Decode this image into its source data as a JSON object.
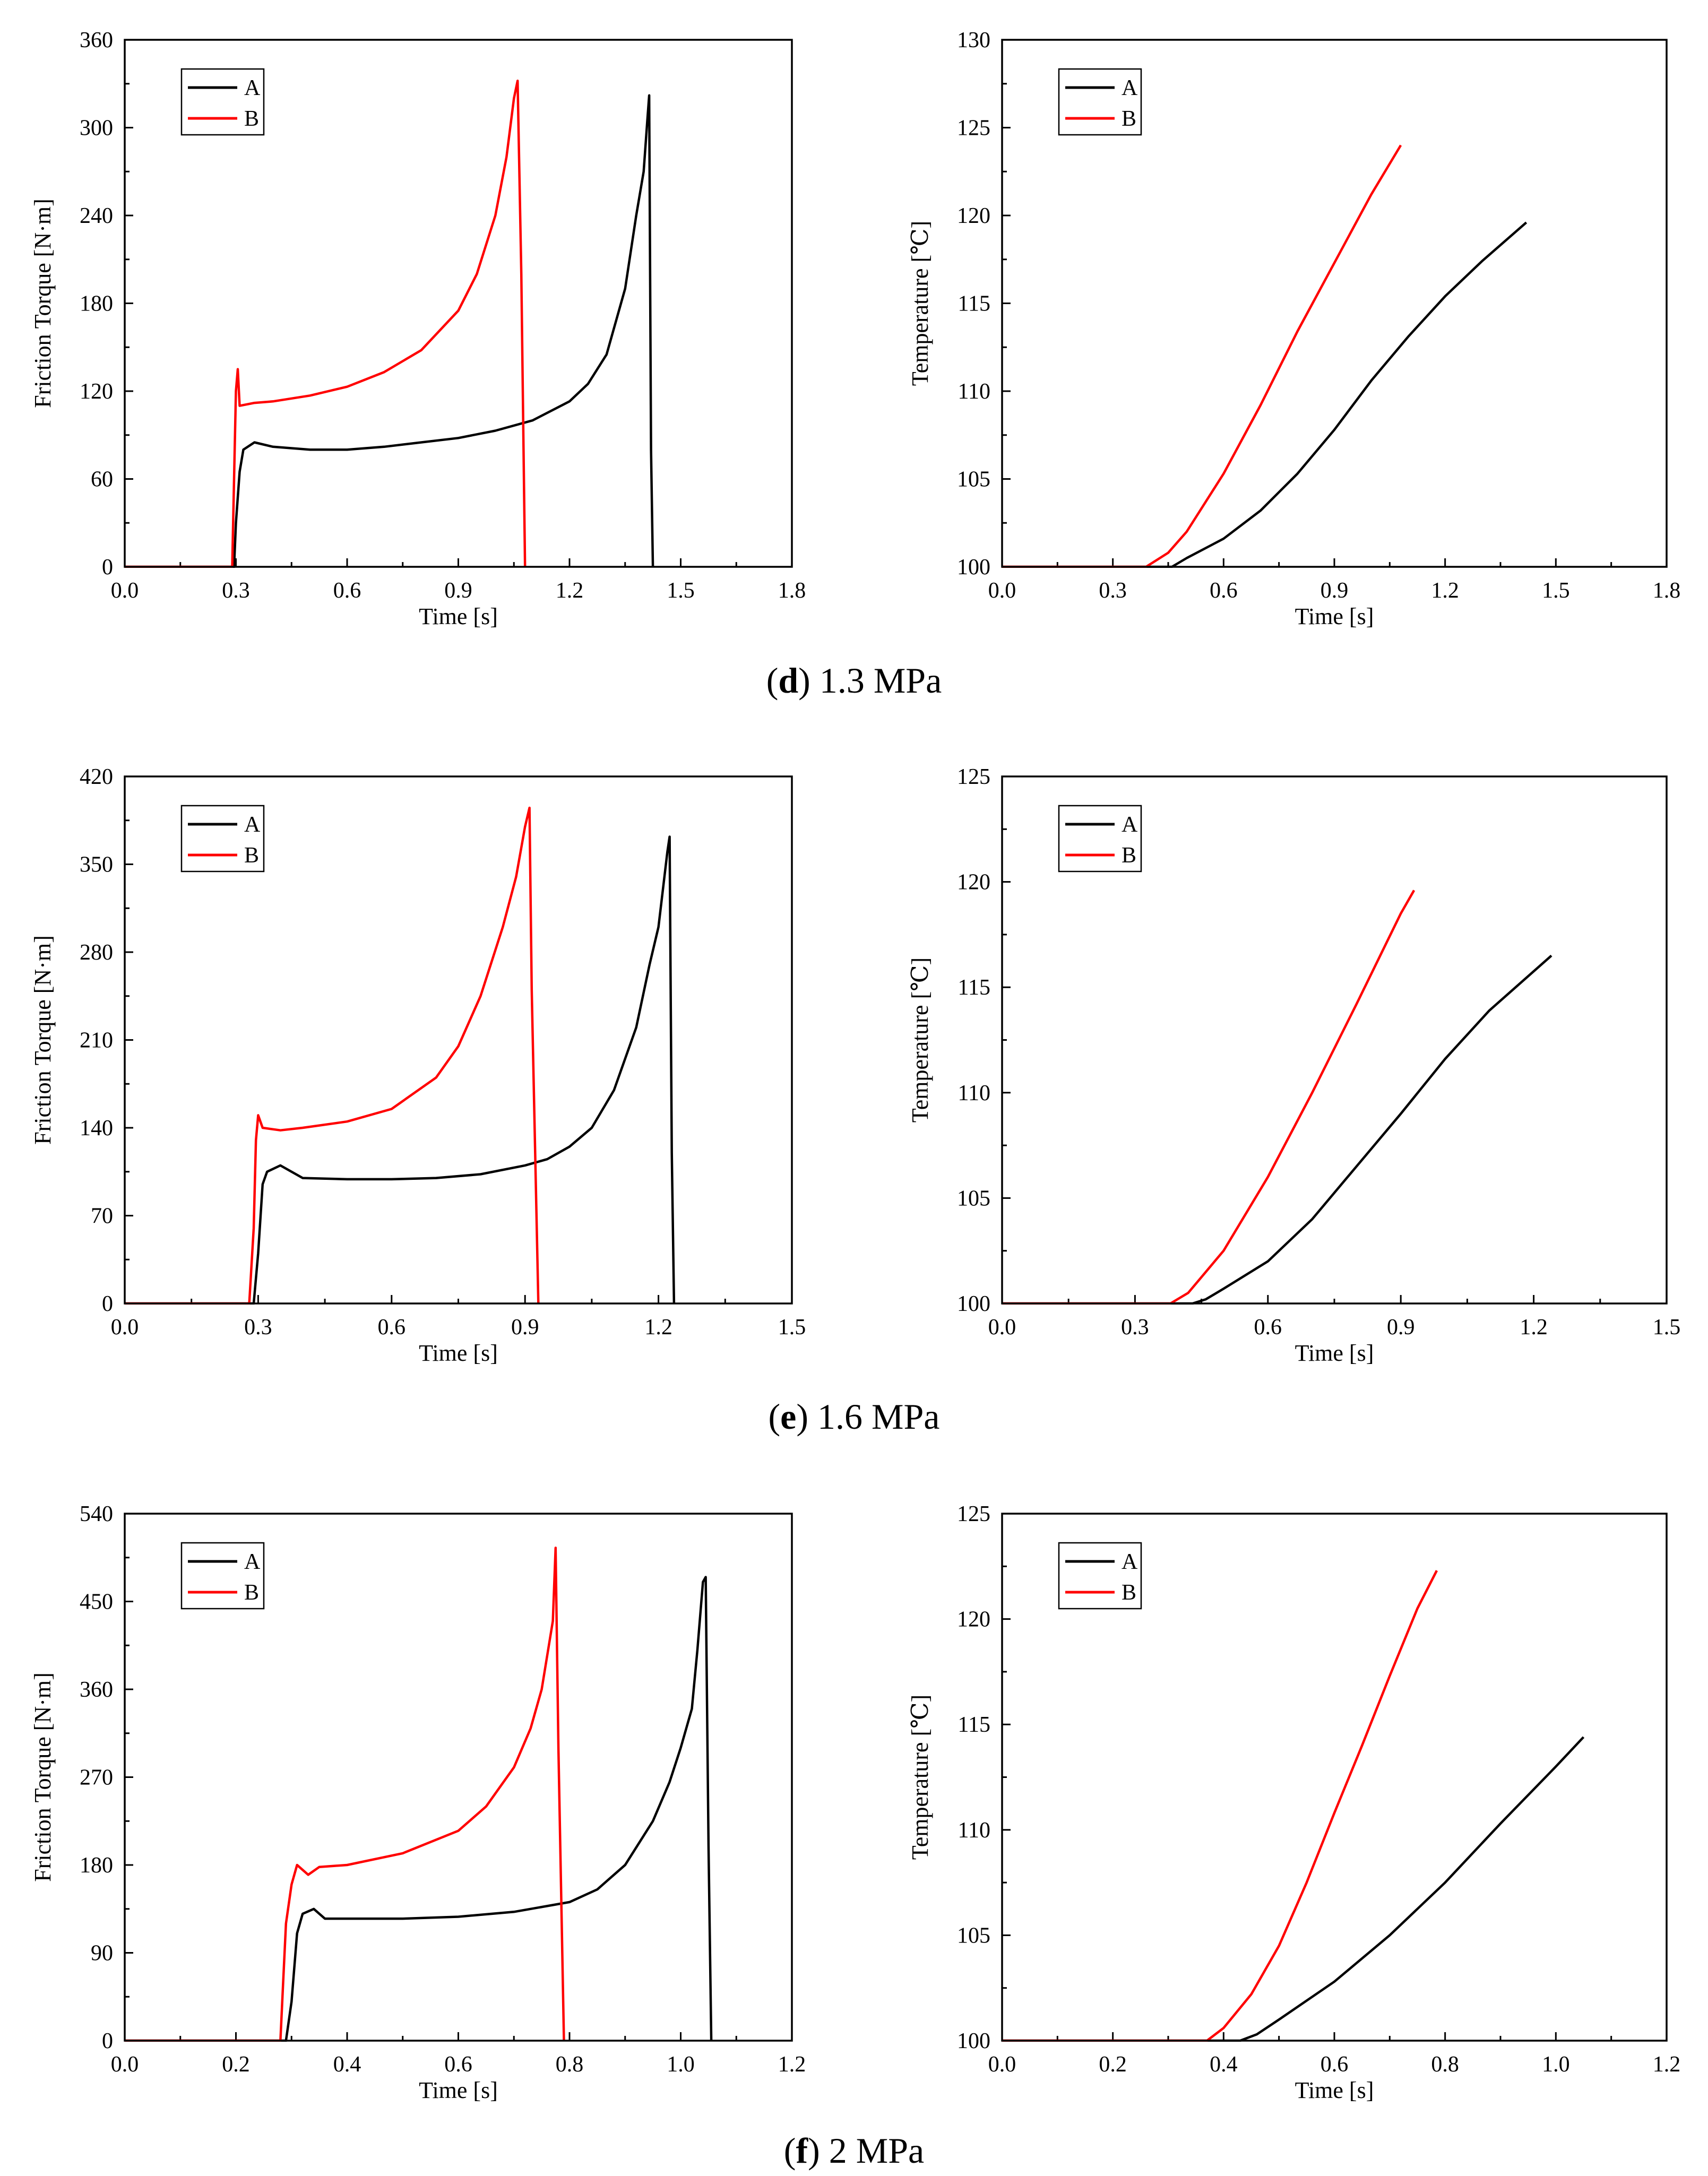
{
  "rows": [
    {
      "caption": {
        "letter": "d",
        "text": " 1.3 MPa"
      },
      "torque": {
        "type": "line",
        "xlabel": "Time [s]",
        "ylabel": "Friction Torque [N·m]",
        "xlim": [
          0,
          1.8
        ],
        "ylim": [
          0,
          360
        ],
        "xticks": [
          "0.0",
          "0.3",
          "0.6",
          "0.9",
          "1.2",
          "1.5",
          "1.8"
        ],
        "yticks": [
          "0",
          "60",
          "120",
          "180",
          "240",
          "300",
          "360"
        ],
        "legend": {
          "position": "top-left"
        },
        "series": [
          {
            "name": "A",
            "color": "#000000",
            "x": [
              0,
              0.29,
              0.295,
              0.3,
              0.31,
              0.32,
              0.35,
              0.4,
              0.5,
              0.6,
              0.7,
              0.8,
              0.9,
              1.0,
              1.1,
              1.2,
              1.25,
              1.3,
              1.35,
              1.38,
              1.4,
              1.41,
              1.415,
              1.42,
              1.425
            ],
            "y": [
              0,
              0,
              0,
              30,
              65,
              80,
              85,
              82,
              80,
              80,
              82,
              85,
              88,
              93,
              100,
              113,
              125,
              145,
              190,
              240,
              270,
              305,
              322,
              80,
              0
            ]
          },
          {
            "name": "B",
            "color": "#ff0000",
            "x": [
              0,
              0.28,
              0.29,
              0.295,
              0.3,
              0.305,
              0.31,
              0.35,
              0.4,
              0.5,
              0.6,
              0.7,
              0.8,
              0.9,
              0.95,
              1.0,
              1.03,
              1.05,
              1.06,
              1.07,
              1.08
            ],
            "y": [
              0,
              0,
              0,
              60,
              120,
              135,
              110,
              112,
              113,
              117,
              123,
              133,
              148,
              175,
              200,
              240,
              280,
              320,
              332,
              200,
              0
            ]
          }
        ]
      },
      "temp": {
        "type": "line",
        "xlabel": "Time [s]",
        "ylabel": "Temperature [℃]",
        "xlim": [
          0,
          1.8
        ],
        "ylim": [
          100,
          130
        ],
        "xticks": [
          "0.0",
          "0.3",
          "0.6",
          "0.9",
          "1.2",
          "1.5",
          "1.8"
        ],
        "yticks": [
          "100",
          "105",
          "110",
          "115",
          "120",
          "125",
          "130"
        ],
        "legend": {
          "position": "top-left"
        },
        "series": [
          {
            "name": "A",
            "color": "#000000",
            "x": [
              0,
              0.4,
              0.46,
              0.5,
              0.6,
              0.7,
              0.8,
              0.9,
              1.0,
              1.1,
              1.2,
              1.3,
              1.42
            ],
            "y": [
              100,
              100,
              100,
              100.5,
              101.6,
              103.2,
              105.3,
              107.8,
              110.6,
              113.1,
              115.4,
              117.4,
              119.6
            ]
          },
          {
            "name": "B",
            "color": "#ff0000",
            "x": [
              0,
              0.39,
              0.45,
              0.5,
              0.6,
              0.7,
              0.8,
              0.9,
              1.0,
              1.08
            ],
            "y": [
              100,
              100,
              100.8,
              102,
              105.3,
              109.2,
              113.4,
              117.3,
              121.2,
              124
            ]
          }
        ]
      }
    },
    {
      "caption": {
        "letter": "e",
        "text": " 1.6 MPa"
      },
      "torque": {
        "type": "line",
        "xlabel": "Time [s]",
        "ylabel": "Friction Torque [N·m]",
        "xlim": [
          0,
          1.5
        ],
        "ylim": [
          0,
          420
        ],
        "xticks": [
          "0.0",
          "0.3",
          "0.6",
          "0.9",
          "1.2",
          "1.5"
        ],
        "yticks": [
          "0",
          "70",
          "140",
          "210",
          "280",
          "350",
          "420"
        ],
        "legend": {
          "position": "top-left"
        },
        "series": [
          {
            "name": "A",
            "color": "#000000",
            "x": [
              0,
              0.29,
              0.3,
              0.31,
              0.32,
              0.35,
              0.4,
              0.5,
              0.6,
              0.7,
              0.8,
              0.9,
              0.95,
              1.0,
              1.05,
              1.1,
              1.15,
              1.18,
              1.2,
              1.22,
              1.225,
              1.23,
              1.235
            ],
            "y": [
              0,
              0,
              40,
              95,
              105,
              110,
              100,
              99,
              99,
              100,
              103,
              110,
              115,
              125,
              140,
              170,
              220,
              270,
              300,
              360,
              372,
              120,
              0
            ]
          },
          {
            "name": "B",
            "color": "#ff0000",
            "x": [
              0,
              0.28,
              0.29,
              0.295,
              0.3,
              0.31,
              0.35,
              0.4,
              0.5,
              0.6,
              0.7,
              0.75,
              0.8,
              0.85,
              0.88,
              0.9,
              0.91,
              0.915,
              0.93
            ],
            "y": [
              0,
              0,
              60,
              130,
              150,
              140,
              138,
              140,
              145,
              155,
              180,
              205,
              245,
              300,
              340,
              380,
              395,
              250,
              0
            ]
          }
        ]
      },
      "temp": {
        "type": "line",
        "xlabel": "Time [s]",
        "ylabel": "Temperature [℃]",
        "xlim": [
          0,
          1.5
        ],
        "ylim": [
          100,
          125
        ],
        "xticks": [
          "0.0",
          "0.3",
          "0.6",
          "0.9",
          "1.2",
          "1.5"
        ],
        "yticks": [
          "100",
          "105",
          "110",
          "115",
          "120",
          "125"
        ],
        "legend": {
          "position": "top-left"
        },
        "series": [
          {
            "name": "A",
            "color": "#000000",
            "x": [
              0,
              0.43,
              0.46,
              0.5,
              0.6,
              0.7,
              0.8,
              0.9,
              1.0,
              1.1,
              1.24
            ],
            "y": [
              100,
              100,
              100.2,
              100.7,
              102,
              104,
              106.5,
              109,
              111.6,
              113.9,
              116.5
            ]
          },
          {
            "name": "B",
            "color": "#ff0000",
            "x": [
              0,
              0.38,
              0.42,
              0.5,
              0.6,
              0.7,
              0.8,
              0.9,
              0.93
            ],
            "y": [
              100,
              100,
              100.5,
              102.5,
              106,
              110,
              114.2,
              118.5,
              119.6
            ]
          }
        ]
      }
    },
    {
      "caption": {
        "letter": "f",
        "text": " 2 MPa"
      },
      "torque": {
        "type": "line",
        "xlabel": "Time [s]",
        "ylabel": "Friction Torque [N·m]",
        "xlim": [
          0,
          1.2
        ],
        "ylim": [
          0,
          540
        ],
        "xticks": [
          "0.0",
          "0.2",
          "0.4",
          "0.6",
          "0.8",
          "1.0",
          "1.2"
        ],
        "yticks": [
          "0",
          "90",
          "180",
          "270",
          "360",
          "450",
          "540"
        ],
        "legend": {
          "position": "top-left"
        },
        "series": [
          {
            "name": "A",
            "color": "#000000",
            "x": [
              0,
              0.29,
              0.3,
              0.31,
              0.32,
              0.34,
              0.36,
              0.4,
              0.5,
              0.6,
              0.7,
              0.8,
              0.85,
              0.9,
              0.95,
              0.98,
              1.0,
              1.02,
              1.03,
              1.04,
              1.045,
              1.05,
              1.055
            ],
            "y": [
              0,
              0,
              40,
              110,
              130,
              135,
              125,
              125,
              125,
              127,
              132,
              142,
              155,
              180,
              225,
              265,
              300,
              340,
              400,
              470,
              475,
              200,
              0
            ]
          },
          {
            "name": "B",
            "color": "#ff0000",
            "x": [
              0,
              0.28,
              0.285,
              0.29,
              0.3,
              0.31,
              0.33,
              0.35,
              0.4,
              0.5,
              0.6,
              0.65,
              0.7,
              0.73,
              0.75,
              0.77,
              0.775,
              0.78,
              0.79
            ],
            "y": [
              0,
              0,
              60,
              120,
              160,
              180,
              170,
              178,
              180,
              192,
              215,
              240,
              280,
              320,
              360,
              430,
              505,
              300,
              0
            ]
          }
        ]
      },
      "temp": {
        "type": "line",
        "xlabel": "Time [s]",
        "ylabel": "Temperature [℃]",
        "xlim": [
          0,
          1.2
        ],
        "ylim": [
          100,
          125
        ],
        "xticks": [
          "0.0",
          "0.2",
          "0.4",
          "0.6",
          "0.8",
          "1.0",
          "1.2"
        ],
        "yticks": [
          "100",
          "105",
          "110",
          "115",
          "120",
          "125"
        ],
        "legend": {
          "position": "top-left"
        },
        "series": [
          {
            "name": "A",
            "color": "#000000",
            "x": [
              0,
              0.43,
              0.46,
              0.5,
              0.6,
              0.7,
              0.8,
              0.9,
              1.0,
              1.05
            ],
            "y": [
              100,
              100,
              100.3,
              101,
              102.8,
              105,
              107.5,
              110.3,
              113,
              114.4
            ]
          },
          {
            "name": "B",
            "color": "#ff0000",
            "x": [
              0,
              0.37,
              0.4,
              0.45,
              0.5,
              0.55,
              0.6,
              0.65,
              0.7,
              0.75,
              0.785
            ],
            "y": [
              100,
              100,
              100.6,
              102.2,
              104.5,
              107.5,
              110.8,
              114,
              117.3,
              120.5,
              122.3
            ]
          }
        ]
      }
    }
  ]
}
